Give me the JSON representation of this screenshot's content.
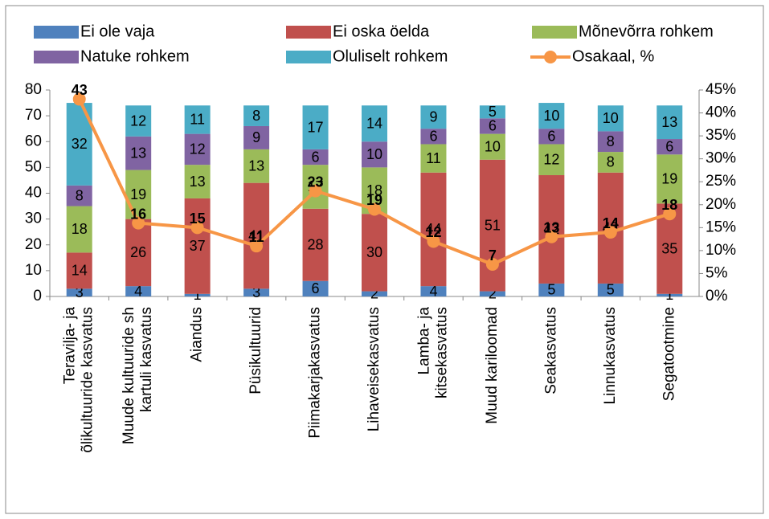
{
  "chart_data": {
    "type": "stacked_bar_line",
    "categories": [
      "Teravilja- ja\nõlikultuuride kasvatus",
      "Muude kultuuride sh\nkartuli kasvatus",
      "Aiandus",
      "Püsikultuurid",
      "Piimakarjakasvatus",
      "Lihaveisekasvatus",
      "Lamba- ja\nkitsekasvatus",
      "Muud kariloomad",
      "Seakasvatus",
      "Linnukasvatus",
      "Segatootmine"
    ],
    "series": [
      {
        "name": "Ei ole vaja",
        "color": "#4f81bd",
        "values": [
          3,
          4,
          1,
          3,
          6,
          2,
          4,
          2,
          5,
          5,
          1
        ]
      },
      {
        "name": "Ei oska öelda",
        "color": "#c0504d",
        "values": [
          14,
          26,
          37,
          41,
          28,
          30,
          44,
          51,
          42,
          43,
          35
        ]
      },
      {
        "name": "Mõnevõrra rohkem",
        "color": "#9bbb59",
        "values": [
          18,
          19,
          13,
          13,
          17,
          18,
          11,
          10,
          12,
          8,
          19
        ]
      },
      {
        "name": "Natuke rohkem",
        "color": "#8064a2",
        "values": [
          8,
          13,
          12,
          9,
          6,
          10,
          6,
          6,
          6,
          8,
          6
        ]
      },
      {
        "name": "Oluliselt rohkem",
        "color": "#4bacc6",
        "values": [
          32,
          12,
          11,
          8,
          17,
          14,
          9,
          5,
          10,
          10,
          13
        ]
      },
      {
        "name": "Osakaal, %",
        "color": "#f79646",
        "axis": "y2",
        "type": "line",
        "values": [
          43,
          16,
          15,
          11,
          23,
          19,
          12,
          7,
          13,
          14,
          18
        ]
      }
    ],
    "ylim": [
      0,
      80
    ],
    "yticks": [
      0,
      10,
      20,
      30,
      40,
      50,
      60,
      70,
      80
    ],
    "y2lim": [
      0,
      45
    ],
    "y2ticks": [
      {
        "value": 0,
        "label": "0%"
      },
      {
        "value": 5,
        "label": "5%"
      },
      {
        "value": 10,
        "label": "10%"
      },
      {
        "value": 15,
        "label": "15%"
      },
      {
        "value": 20,
        "label": "20%"
      },
      {
        "value": 25,
        "label": "25%"
      },
      {
        "value": 30,
        "label": "30%"
      },
      {
        "value": 35,
        "label": "35%"
      },
      {
        "value": 40,
        "label": "40%"
      },
      {
        "value": 45,
        "label": "45%"
      }
    ],
    "grid": false
  }
}
